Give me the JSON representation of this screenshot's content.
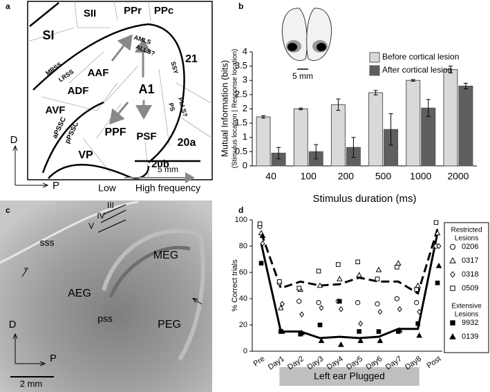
{
  "panel_labels": [
    "a",
    "b",
    "c",
    "d"
  ],
  "panel_a": {
    "regions": [
      "SII",
      "PPr",
      "PPc",
      "SI",
      "AMLS",
      "ALLS?",
      "SSY",
      "21",
      "MRSS",
      "LRSS",
      "AAF",
      "ADF",
      "A1",
      "AVF",
      "PLLS?",
      "PS",
      "aPSSC",
      "pPSSC",
      "PPF",
      "PSF",
      "20a",
      "VP",
      "20b"
    ],
    "scale_bar": "5 mm",
    "axis_d": "D",
    "axis_p": "P",
    "gradient_low": "Low",
    "gradient_high": "High frequency"
  },
  "panel_b_inset": {
    "scale_bar": "5 mm"
  },
  "panel_c": {
    "labels": [
      "III",
      "IV",
      "V",
      "sss",
      "MEG",
      "AEG",
      "pss",
      "PEG"
    ],
    "axis_d": "D",
    "axis_p": "P",
    "scale_bar": "2 mm"
  },
  "chart_data": [
    {
      "type": "bar",
      "ylabel": "Mutual Information (bits)",
      "ylabel_sub": "(Stimulus location | Response location)",
      "xlabel": "Stimulus duration (ms)",
      "categories": [
        "40",
        "100",
        "200",
        "500",
        "1000",
        "2000"
      ],
      "series": [
        {
          "name": "Before cortical lesion",
          "color": "#d9d9d9",
          "values": [
            1.72,
            2.0,
            2.15,
            2.57,
            3.0,
            3.38
          ],
          "errors": [
            0.04,
            0.03,
            0.2,
            0.08,
            0.03,
            0.12
          ]
        },
        {
          "name": "After cortical lesion",
          "color": "#5f5f5f",
          "values": [
            0.45,
            0.5,
            0.65,
            1.28,
            2.03,
            2.8
          ],
          "errors": [
            0.2,
            0.25,
            0.35,
            0.55,
            0.3,
            0.1
          ]
        }
      ],
      "ylim": [
        0,
        4
      ],
      "yticks": [
        0,
        0.5,
        1,
        1.5,
        2,
        2.5,
        3,
        3.5,
        4
      ]
    },
    {
      "type": "line",
      "ylabel": "% Correct trials",
      "annotation": "Left ear Plugged",
      "categories": [
        "Pre",
        "Day1",
        "Day2",
        "Day3",
        "Day4",
        "Day5",
        "Day6",
        "Day7",
        "Day8",
        "Post"
      ],
      "trend_lines": [
        {
          "style": "dashed",
          "color": "#000000",
          "values": [
            90,
            48,
            53,
            50,
            51,
            56,
            53,
            53,
            44,
            93
          ]
        },
        {
          "style": "solid",
          "color": "#000000",
          "values": [
            82,
            15,
            15,
            10,
            11,
            10,
            11,
            17,
            17,
            90
          ]
        }
      ],
      "legend_titles": [
        "Restricted Lesions",
        "Extensive Lesions"
      ],
      "series": [
        {
          "name": "0206",
          "marker": "circle",
          "color": "#000000",
          "filled": false,
          "values": [
            95,
            52,
            38,
            37,
            38,
            37,
            36,
            40,
            37,
            80
          ]
        },
        {
          "name": "0317",
          "marker": "triangle",
          "color": "#000000",
          "filled": false,
          "values": [
            90,
            33,
            47,
            50,
            55,
            58,
            62,
            67,
            50,
            90
          ]
        },
        {
          "name": "0318",
          "marker": "diamond",
          "color": "#000000",
          "filled": false,
          "values": [
            82,
            36,
            28,
            33,
            32,
            21,
            30,
            32,
            30,
            80
          ]
        },
        {
          "name": "0509",
          "marker": "square",
          "color": "#000000",
          "filled": false,
          "values": [
            97,
            53,
            48,
            61,
            66,
            68,
            55,
            64,
            47,
            98
          ]
        },
        {
          "name": "9932",
          "marker": "square",
          "color": "#000000",
          "filled": true,
          "values": [
            67,
            15,
            13,
            20,
            38,
            15,
            15,
            15,
            21,
            52
          ]
        },
        {
          "name": "0139",
          "marker": "triangle",
          "color": "#000000",
          "filled": true,
          "values": [
            88,
            15,
            14,
            8,
            5,
            8,
            8,
            16,
            12,
            65
          ]
        }
      ],
      "ylim": [
        0,
        100
      ],
      "yticks": [
        0,
        20,
        40,
        60,
        80,
        100
      ]
    }
  ]
}
